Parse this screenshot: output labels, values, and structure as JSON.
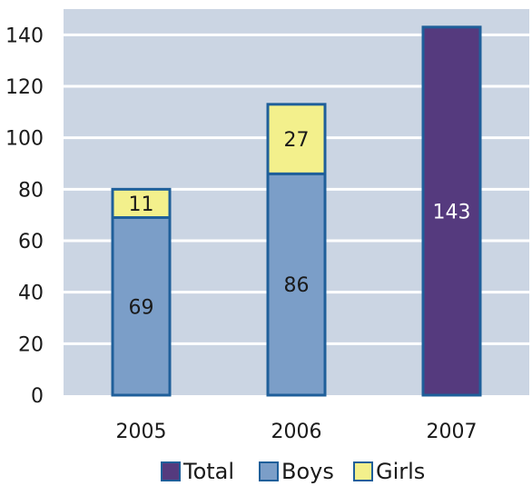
{
  "chart_data": {
    "type": "bar",
    "stacked": true,
    "categories": [
      "2005",
      "2006",
      "2007"
    ],
    "series": [
      {
        "name": "Total",
        "values": [
          null,
          null,
          143
        ],
        "color": "#553a7e",
        "label_color": "#ffffff"
      },
      {
        "name": "Boys",
        "values": [
          69,
          86,
          null
        ],
        "color": "#7b9ec8",
        "label_color": "#1a1a1a"
      },
      {
        "name": "Girls",
        "values": [
          11,
          27,
          null
        ],
        "color": "#f3f08c",
        "label_color": "#1a1a1a"
      }
    ],
    "yticks": [
      "0",
      "20",
      "40",
      "60",
      "80",
      "100",
      "120",
      "140"
    ],
    "ylim": [
      0,
      150
    ],
    "grid": true,
    "legend_position": "bottom",
    "colors": {
      "plot_background": "#cbd5e3",
      "gridline": "#ffffff",
      "bar_outline": "#1f5f9a"
    }
  }
}
